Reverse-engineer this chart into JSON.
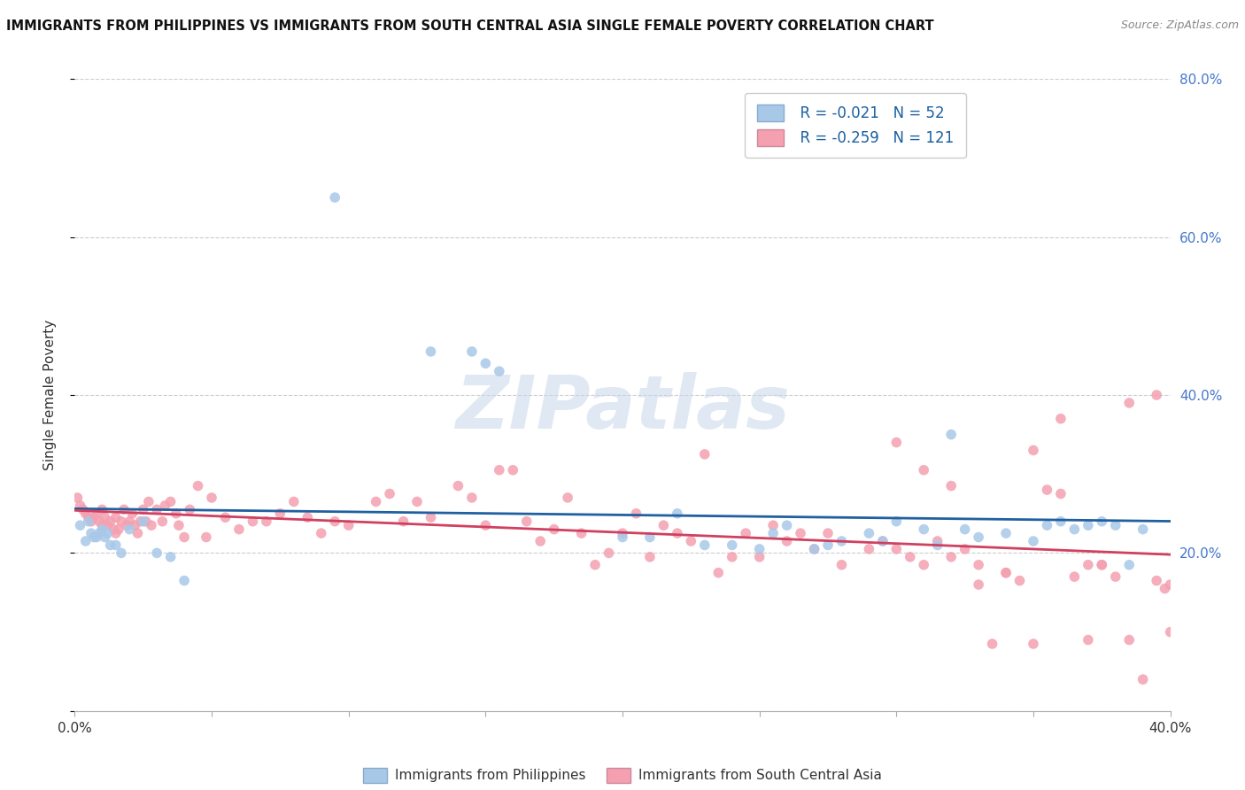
{
  "title": "IMMIGRANTS FROM PHILIPPINES VS IMMIGRANTS FROM SOUTH CENTRAL ASIA SINGLE FEMALE POVERTY CORRELATION CHART",
  "source": "Source: ZipAtlas.com",
  "ylabel": "Single Female Poverty",
  "legend_blue_R": "R = -0.021",
  "legend_blue_N": "N = 52",
  "legend_pink_R": "R = -0.259",
  "legend_pink_N": "N = 121",
  "blue_color": "#a8c8e8",
  "pink_color": "#f4a0b0",
  "trendline_blue": "#2060a0",
  "trendline_pink": "#d04060",
  "background_color": "#ffffff",
  "grid_color": "#cccccc",
  "xlim": [
    0.0,
    0.4
  ],
  "ylim": [
    0.0,
    0.8
  ],
  "yticks": [
    0.0,
    0.2,
    0.4,
    0.6,
    0.8
  ],
  "ytick_labels": [
    "",
    "20.0%",
    "40.0%",
    "60.0%",
    "80.0%"
  ],
  "blue_scatter_x": [
    0.002,
    0.004,
    0.005,
    0.006,
    0.007,
    0.008,
    0.009,
    0.01,
    0.011,
    0.012,
    0.013,
    0.015,
    0.017,
    0.02,
    0.025,
    0.03,
    0.035,
    0.04,
    0.095,
    0.13,
    0.145,
    0.15,
    0.155,
    0.2,
    0.21,
    0.22,
    0.23,
    0.24,
    0.25,
    0.255,
    0.26,
    0.27,
    0.275,
    0.28,
    0.29,
    0.295,
    0.3,
    0.31,
    0.315,
    0.32,
    0.325,
    0.33,
    0.34,
    0.35,
    0.355,
    0.36,
    0.365,
    0.37,
    0.375,
    0.38,
    0.385,
    0.39
  ],
  "blue_scatter_y": [
    0.235,
    0.215,
    0.24,
    0.225,
    0.22,
    0.22,
    0.225,
    0.23,
    0.22,
    0.225,
    0.21,
    0.21,
    0.2,
    0.23,
    0.24,
    0.2,
    0.195,
    0.165,
    0.65,
    0.455,
    0.455,
    0.44,
    0.43,
    0.22,
    0.22,
    0.25,
    0.21,
    0.21,
    0.205,
    0.225,
    0.235,
    0.205,
    0.21,
    0.215,
    0.225,
    0.215,
    0.24,
    0.23,
    0.21,
    0.35,
    0.23,
    0.22,
    0.225,
    0.215,
    0.235,
    0.24,
    0.23,
    0.235,
    0.24,
    0.235,
    0.185,
    0.23
  ],
  "pink_scatter_x": [
    0.001,
    0.002,
    0.003,
    0.004,
    0.005,
    0.006,
    0.007,
    0.008,
    0.009,
    0.01,
    0.01,
    0.011,
    0.012,
    0.013,
    0.014,
    0.015,
    0.015,
    0.016,
    0.017,
    0.018,
    0.019,
    0.02,
    0.021,
    0.022,
    0.023,
    0.024,
    0.025,
    0.026,
    0.027,
    0.028,
    0.03,
    0.032,
    0.033,
    0.035,
    0.037,
    0.038,
    0.04,
    0.042,
    0.045,
    0.048,
    0.05,
    0.055,
    0.06,
    0.065,
    0.07,
    0.075,
    0.08,
    0.085,
    0.09,
    0.095,
    0.1,
    0.11,
    0.115,
    0.12,
    0.125,
    0.13,
    0.14,
    0.145,
    0.15,
    0.155,
    0.16,
    0.165,
    0.17,
    0.175,
    0.18,
    0.185,
    0.19,
    0.195,
    0.2,
    0.205,
    0.21,
    0.215,
    0.22,
    0.225,
    0.23,
    0.235,
    0.24,
    0.245,
    0.25,
    0.255,
    0.26,
    0.265,
    0.27,
    0.275,
    0.28,
    0.29,
    0.295,
    0.3,
    0.305,
    0.31,
    0.315,
    0.32,
    0.325,
    0.33,
    0.335,
    0.34,
    0.345,
    0.35,
    0.355,
    0.36,
    0.365,
    0.37,
    0.375,
    0.38,
    0.385,
    0.39,
    0.395,
    0.398,
    0.4,
    0.4,
    0.395,
    0.385,
    0.375,
    0.37,
    0.36,
    0.35,
    0.34,
    0.33,
    0.32,
    0.31,
    0.3
  ],
  "pink_scatter_y": [
    0.27,
    0.26,
    0.255,
    0.25,
    0.245,
    0.24,
    0.245,
    0.25,
    0.24,
    0.235,
    0.255,
    0.245,
    0.235,
    0.24,
    0.23,
    0.245,
    0.225,
    0.23,
    0.24,
    0.255,
    0.235,
    0.24,
    0.25,
    0.235,
    0.225,
    0.24,
    0.255,
    0.24,
    0.265,
    0.235,
    0.255,
    0.24,
    0.26,
    0.265,
    0.25,
    0.235,
    0.22,
    0.255,
    0.285,
    0.22,
    0.27,
    0.245,
    0.23,
    0.24,
    0.24,
    0.25,
    0.265,
    0.245,
    0.225,
    0.24,
    0.235,
    0.265,
    0.275,
    0.24,
    0.265,
    0.245,
    0.285,
    0.27,
    0.235,
    0.305,
    0.305,
    0.24,
    0.215,
    0.23,
    0.27,
    0.225,
    0.185,
    0.2,
    0.225,
    0.25,
    0.195,
    0.235,
    0.225,
    0.215,
    0.325,
    0.175,
    0.195,
    0.225,
    0.195,
    0.235,
    0.215,
    0.225,
    0.205,
    0.225,
    0.185,
    0.205,
    0.215,
    0.205,
    0.195,
    0.185,
    0.215,
    0.195,
    0.205,
    0.185,
    0.085,
    0.175,
    0.165,
    0.085,
    0.28,
    0.275,
    0.17,
    0.09,
    0.185,
    0.17,
    0.09,
    0.04,
    0.165,
    0.155,
    0.1,
    0.16,
    0.4,
    0.39,
    0.185,
    0.185,
    0.37,
    0.33,
    0.175,
    0.16,
    0.285,
    0.305,
    0.34
  ],
  "watermark": "ZIPatlas",
  "figsize": [
    14.06,
    8.92
  ],
  "dpi": 100
}
